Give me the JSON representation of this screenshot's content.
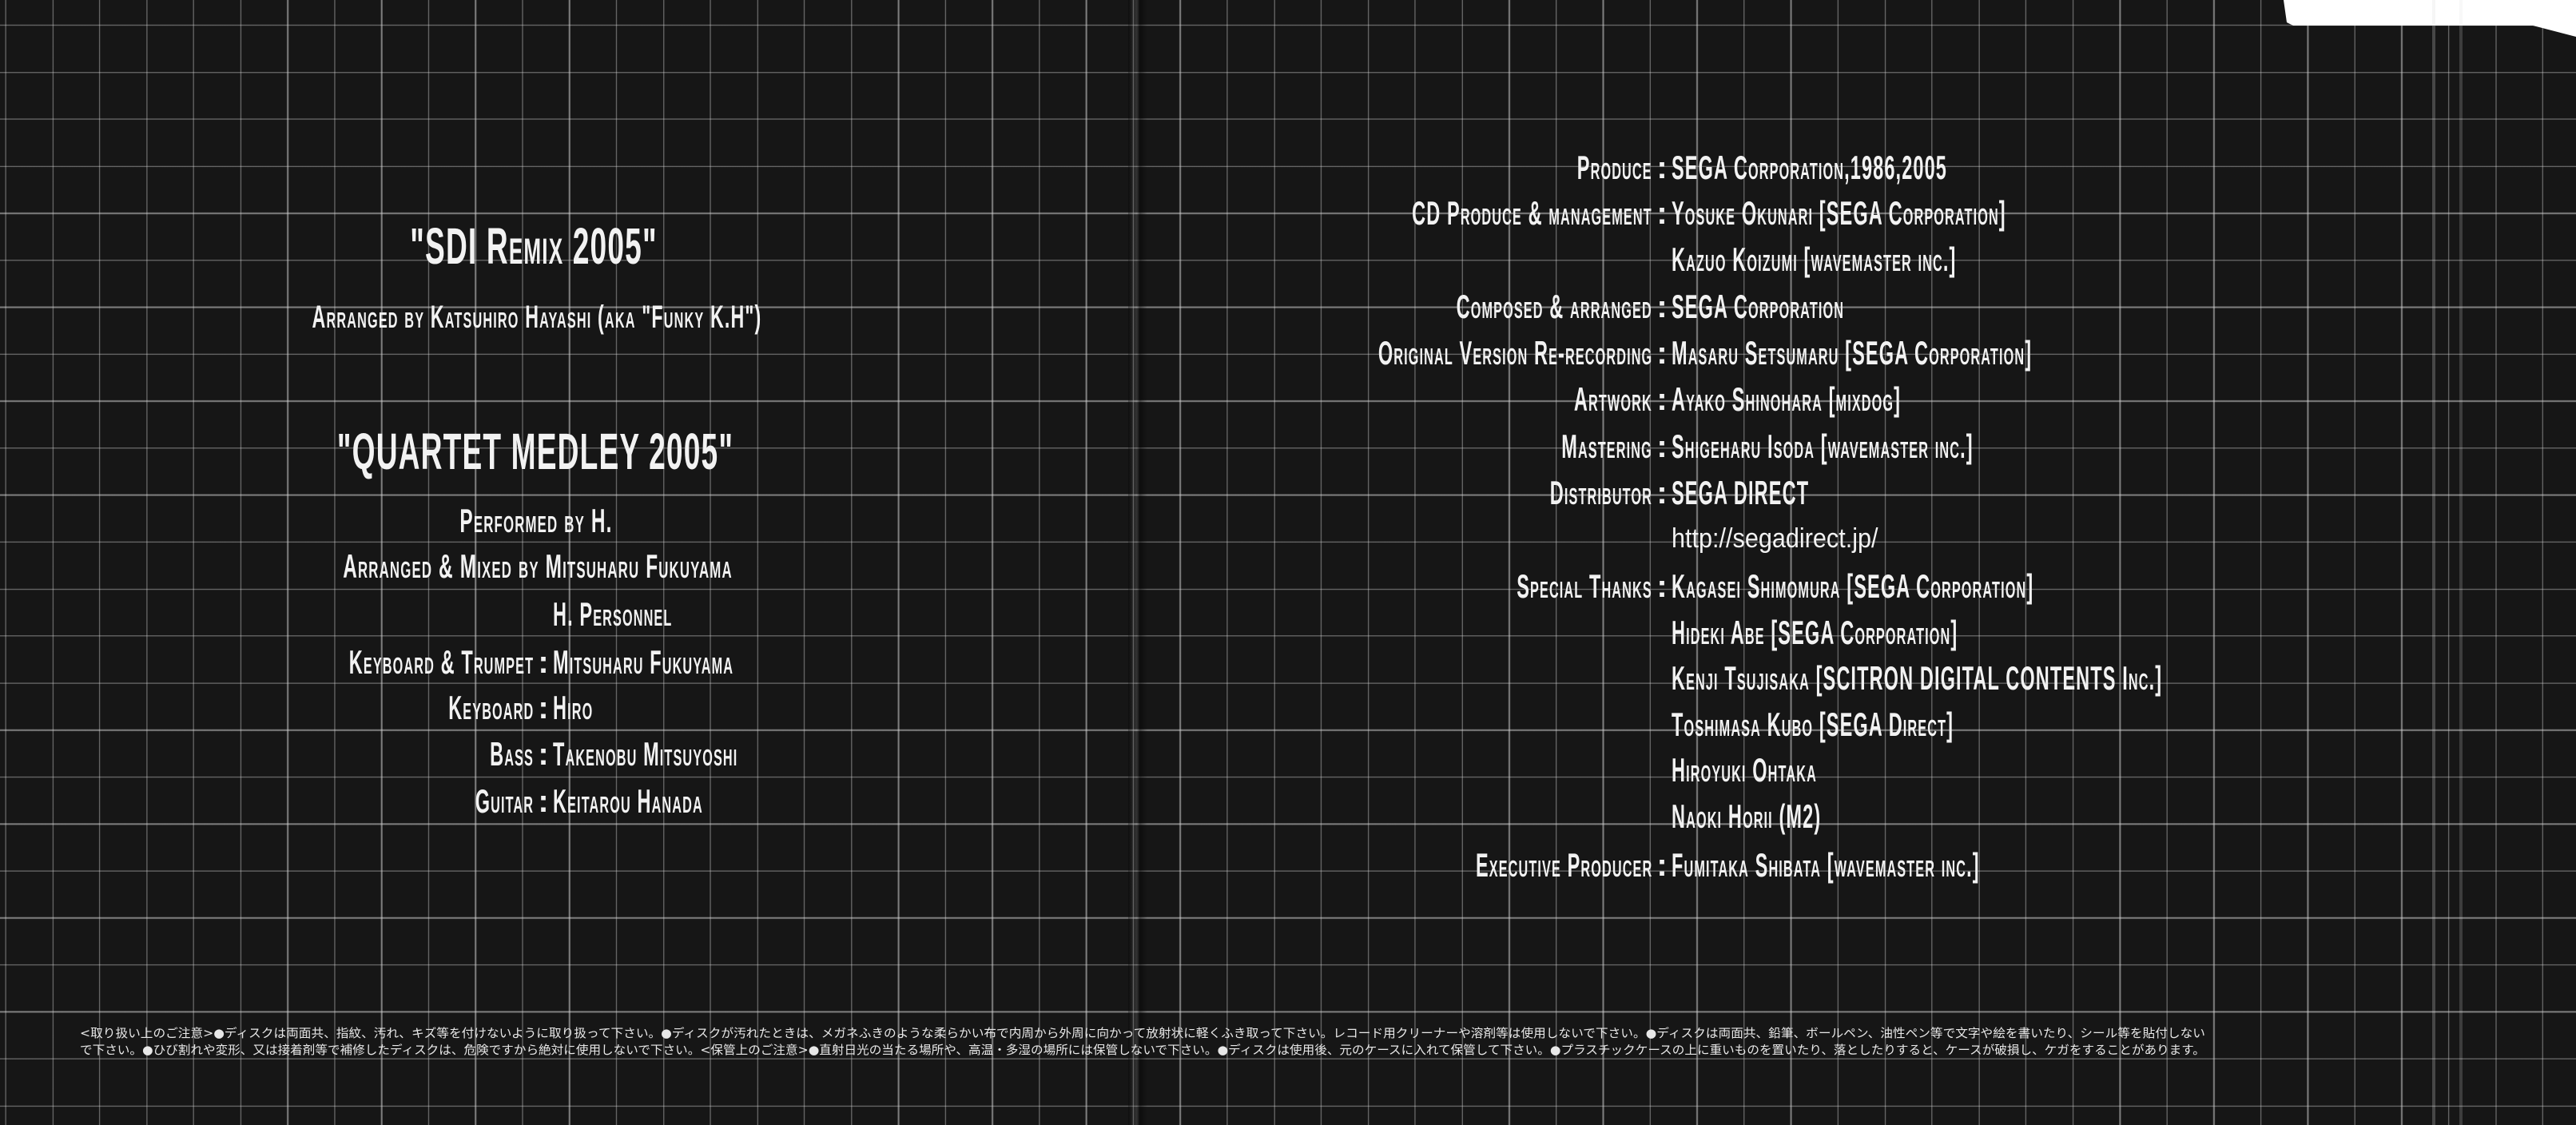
{
  "left": {
    "title_1": "\"SDI Remix 2005\"",
    "subtitle_1": "Arranged by Katsuhiro Hayashi (aka \"Funky K.H\")",
    "title_2": "\"QUARTET MEDLEY 2005\"",
    "performed": "Performed by H.",
    "arranged_mixed": "Arranged & Mixed by Mitsuharu Fukuyama",
    "credits": [
      {
        "label": "",
        "value": "H. Personnel"
      },
      {
        "label": "Keyboard & Trumpet",
        "value": "Mitsuharu Fukuyama"
      },
      {
        "label": "Keyboard",
        "value": "Hiro"
      },
      {
        "label": "Bass",
        "value": "Takenobu Mitsuyoshi"
      },
      {
        "label": "Guitar",
        "value": "Keitarou Hanada"
      }
    ]
  },
  "right": {
    "credits": [
      {
        "label": "Produce",
        "value": "SEGA Corporation,1986,2005"
      },
      {
        "label": "CD Produce & management",
        "value": "Yosuke Okunari [SEGA Corporation]"
      },
      {
        "label": "",
        "value": "Kazuo Koizumi [wavemaster inc.]"
      },
      {
        "label": "Composed & arranged",
        "value": "SEGA Corporation"
      },
      {
        "label": "Original Version Re-recording",
        "value": "Masaru Setsumaru [SEGA Corporation]"
      },
      {
        "label": "Artwork",
        "value": "Ayako Shinohara [mixdog]"
      },
      {
        "label": "Mastering",
        "value": "Shigeharu Isoda [wavemaster inc.]"
      },
      {
        "label": "Distributor",
        "value": "SEGA DIRECT"
      },
      {
        "label": "",
        "value": "http://segadirect.jp/",
        "url": true
      },
      {
        "label": "Special Thanks",
        "value": "Kagasei Shimomura [SEGA Corporation]"
      },
      {
        "label": "",
        "value": "Hideki Abe [SEGA Corporation]"
      },
      {
        "label": "",
        "value": "Kenji Tsujisaka [SCITRON DIGITAL CONTENTS Inc.]"
      },
      {
        "label": "",
        "value": "Toshimasa Kubo [SEGA Direct]"
      },
      {
        "label": "",
        "value": "Hiroyuki Ohtaka"
      },
      {
        "label": "",
        "value": "Naoki Horii (M2)"
      },
      {
        "label": "Executive Producer",
        "value": "Fumitaka Shibata [wavemaster inc.]"
      }
    ]
  },
  "separator": ":",
  "notes": {
    "line_1": "<取り扱い上のご注意>●ディスクは両面共、指紋、汚れ、キズ等を付けないように取り扱って下さい。●ディスクが汚れたときは、メガネふきのような柔らかい布で内周から外周に向かって放射状に軽くふき取って下さい。レコード用クリーナーや溶剤等は使用しないで下さい。●ディスクは両面共、鉛筆、ボールペン、油性ペン等で文字や絵を書いたり、シール等を貼付しない",
    "line_2": "で下さい。●ひび割れや変形、又は接着剤等で補修したディスクは、危険ですから絶対に使用しないで下さい。<保管上のご注意>●直射日光の当たる場所や、高温・多湿の場所には保管しないで下さい。●ディスクは使用後、元のケースに入れて保管して下さい。●プラスチックケースの上に重いものを置いたり、落としたりすると、ケースが破損し、ケガをすることがあります。"
  },
  "colors": {
    "background": "#161616",
    "grid": "#d2d2d2",
    "text": "#f2f2f2"
  }
}
